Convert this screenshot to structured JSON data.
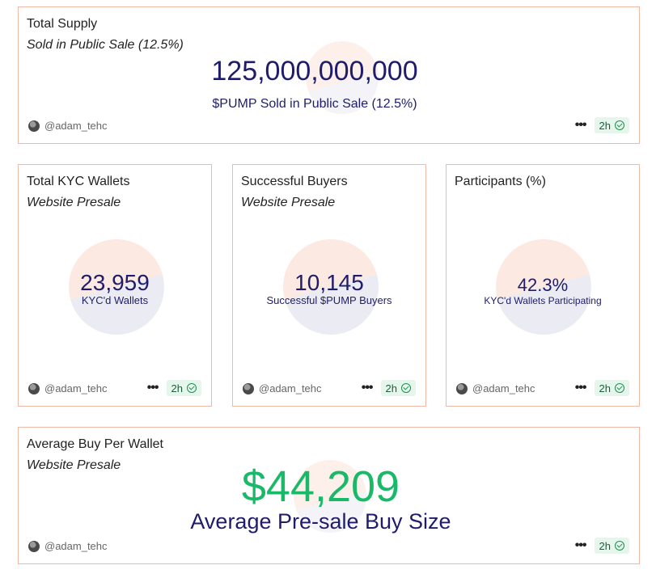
{
  "cards": {
    "total_supply": {
      "title": "Total Supply",
      "subtitle": "Sold in Public Sale (12.5%)",
      "value": "125,000,000,000",
      "caption": "$PUMP Sold in Public Sale (12.5%)",
      "author": "@adam_tehc",
      "age": "2h"
    },
    "kyc_wallets": {
      "title": "Total KYC Wallets",
      "subtitle": "Website Presale",
      "value": "23,959",
      "caption": "KYC'd Wallets",
      "author": "@adam_tehc",
      "age": "2h"
    },
    "successful_buyers": {
      "title": "Successful Buyers",
      "subtitle": "Website Presale",
      "value": "10,145",
      "caption": "Successful $PUMP Buyers",
      "author": "@adam_tehc",
      "age": "2h"
    },
    "participants": {
      "title": "Participants (%)",
      "value": "42.3%",
      "caption": "KYC'd Wallets Participating",
      "author": "@adam_tehc",
      "age": "2h"
    },
    "avg_buy": {
      "title": "Average Buy Per Wallet",
      "subtitle": "Website Presale",
      "value": "$44,209",
      "caption": "Average Pre-sale Buy Size",
      "author": "@adam_tehc",
      "age": "2h"
    }
  },
  "icons": {
    "menu": "more-dots-icon",
    "verified": "check-circle-icon",
    "avatar": "user-avatar"
  },
  "colors": {
    "border": "#f0b9a6",
    "navy": "#1f1d6b",
    "green": "#1ab96a",
    "badge_bg": "#e6f6ec"
  }
}
